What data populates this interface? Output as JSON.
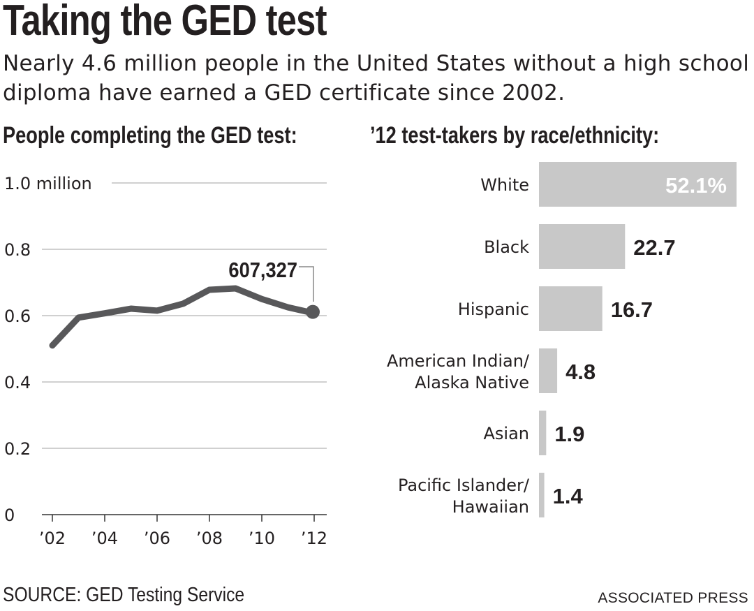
{
  "title": "Taking the GED test",
  "subtitle": "Nearly 4.6 million people in the United States without a high school diploma have earned a GED certificate since 2002.",
  "source": "SOURCE: GED Testing Service",
  "credit": "ASSOCIATED PRESS",
  "colors": {
    "line": "#58585a",
    "bar": "#c8c8c8",
    "grid": "#b5b5b5",
    "text": "#231f20"
  },
  "chart_data": [
    {
      "type": "line",
      "title": "People completing the GED test:",
      "x": [
        2002,
        2003,
        2004,
        2005,
        2006,
        2007,
        2008,
        2009,
        2010,
        2011,
        2012
      ],
      "y": [
        0.51,
        0.594,
        0.607,
        0.621,
        0.615,
        0.636,
        0.678,
        0.682,
        0.65,
        0.625,
        0.607
      ],
      "ylim": [
        0,
        1.0
      ],
      "yticks": [
        0,
        0.2,
        0.4,
        0.6,
        0.8,
        1.0
      ],
      "ytick_labels": [
        "0",
        "0.2",
        "0.4",
        "0.6",
        "0.8",
        "1.0 million"
      ],
      "xtick_labels": [
        "’02",
        "’04",
        "’06",
        "’08",
        "’10",
        "’12"
      ],
      "xticks": [
        2002,
        2004,
        2006,
        2008,
        2010,
        2012
      ],
      "grid": true,
      "annotation": {
        "x": 2012,
        "label": "607,327"
      }
    },
    {
      "type": "bar",
      "orientation": "horizontal",
      "title": "’12 test-takers by race/ethnicity:",
      "categories": [
        "White",
        "Black",
        "Hispanic",
        "American Indian/\nAlaska Native",
        "Asian",
        "Pacific Islander/\nHawaiian"
      ],
      "values": [
        52.1,
        22.7,
        16.7,
        4.8,
        1.9,
        1.4
      ],
      "value_labels": [
        "52.1%",
        "22.7",
        "16.7",
        "4.8",
        "1.9",
        "1.4"
      ],
      "unit": "%"
    }
  ]
}
